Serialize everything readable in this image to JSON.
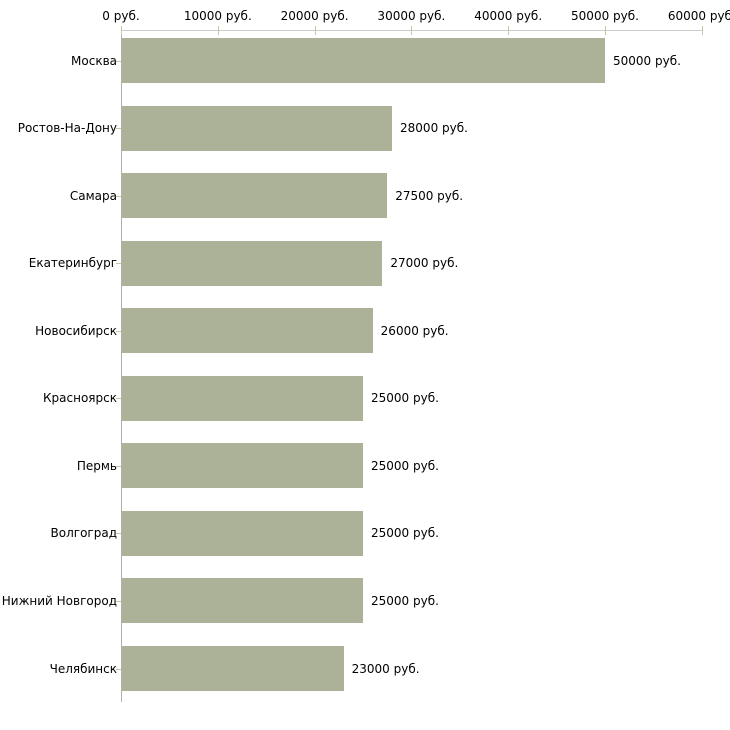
{
  "chart_data": {
    "type": "bar",
    "orientation": "horizontal",
    "title": "",
    "categories": [
      "Москва",
      "Ростов-На-Дону",
      "Самара",
      "Екатеринбург",
      "Новосибирск",
      "Красноярск",
      "Пермь",
      "Волгоград",
      "Нижний Новгород",
      "Челябинск"
    ],
    "values": [
      50000,
      28000,
      27500,
      27000,
      26000,
      25000,
      25000,
      25000,
      25000,
      23000
    ],
    "bar_labels": [
      "50000 руб.",
      "28000 руб.",
      "27500 руб.",
      "27000 руб.",
      "26000 руб.",
      "25000 руб.",
      "25000 руб.",
      "25000 руб.",
      "25000 руб.",
      "23000 руб."
    ],
    "x_axis": {
      "position": "top",
      "ticks": [
        0,
        10000,
        20000,
        30000,
        40000,
        50000,
        60000
      ],
      "tick_labels": [
        "0 руб.",
        "10000 руб.",
        "20000 руб.",
        "30000 руб.",
        "40000 руб.",
        "50000 руб.",
        "60000 руб."
      ],
      "xlim": [
        0,
        60000
      ]
    },
    "ylabel": "",
    "xlabel": "",
    "legend": "none",
    "grid": false,
    "colors": {
      "bar": "#acb297",
      "x_axis_line": "#cccccc",
      "y_axis_line": "#b0b0b0",
      "tick": "#c6c6a6",
      "text": "#000000",
      "background": "#ffffff"
    }
  }
}
